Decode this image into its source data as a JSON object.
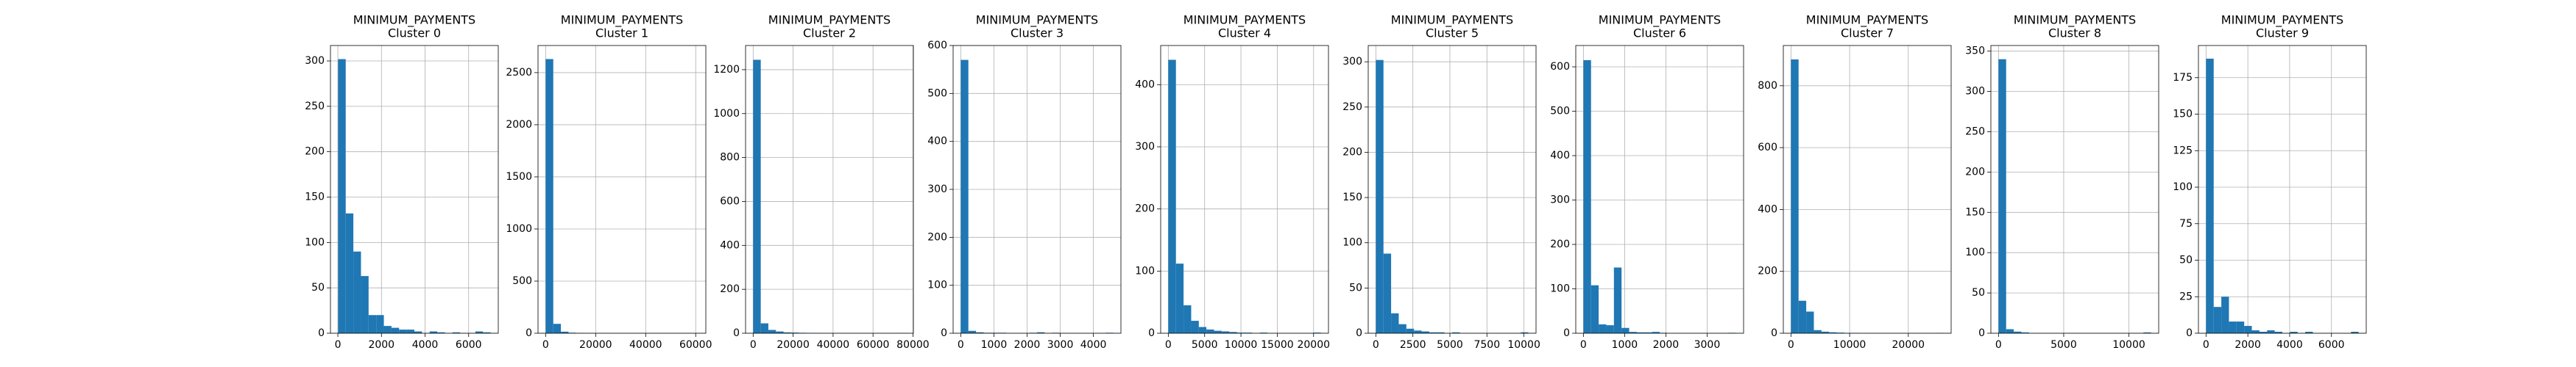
{
  "chart_data": [
    {
      "type": "histogram",
      "title": "MINIMUM_PAYMENTS",
      "subtitle": "Cluster 0",
      "color": "#1f77b4",
      "grid": true,
      "bins": [
        10,
        360,
        710,
        1060,
        1410,
        1760,
        2110,
        2460,
        2810,
        3160,
        3510,
        3860,
        4210,
        4560,
        4910,
        5260,
        5610,
        5960,
        6310,
        6660,
        7010
      ],
      "values": [
        302,
        132,
        90,
        63,
        20,
        20,
        8,
        6,
        4,
        4,
        2,
        0,
        2,
        1,
        0,
        1,
        0,
        0,
        2,
        1
      ],
      "xlim": [
        -340,
        7360
      ],
      "xticks": [
        0,
        2000,
        4000,
        6000
      ],
      "ylim": [
        0,
        317
      ],
      "yticks": [
        0,
        50,
        100,
        150,
        200,
        250,
        300
      ]
    },
    {
      "type": "histogram",
      "title": "MINIMUM_PAYMENTS",
      "subtitle": "Cluster 1",
      "color": "#1f77b4",
      "grid": true,
      "bins": [
        0,
        3050,
        6100,
        9150,
        12200,
        15250,
        18300,
        21350,
        24400,
        27450,
        30500,
        33550,
        36600,
        39650,
        42700,
        45750,
        48800,
        51850,
        54900,
        57950,
        61000
      ],
      "values": [
        2630,
        90,
        15,
        5,
        3,
        2,
        1,
        1,
        0,
        0,
        0,
        0,
        0,
        0,
        0,
        0,
        0,
        0,
        0,
        1
      ],
      "xlim": [
        -3050,
        64050
      ],
      "xticks": [
        0,
        20000,
        40000,
        60000
      ],
      "ylim": [
        0,
        2760
      ],
      "yticks": [
        0,
        500,
        1000,
        1500,
        2000,
        2500
      ]
    },
    {
      "type": "histogram",
      "title": "MINIMUM_PAYMENTS",
      "subtitle": "Cluster 2",
      "color": "#1f77b4",
      "grid": true,
      "bins": [
        0,
        3800,
        7600,
        11400,
        15200,
        19000,
        22800,
        26600,
        30400,
        34200,
        38000,
        41800,
        45600,
        49400,
        53200,
        57000,
        60800,
        64600,
        68400,
        72200,
        76000
      ],
      "values": [
        1245,
        45,
        15,
        8,
        4,
        3,
        2,
        1,
        1,
        0,
        0,
        0,
        0,
        0,
        0,
        0,
        0,
        0,
        0,
        1
      ],
      "xlim": [
        -3800,
        80200
      ],
      "xticks": [
        0,
        20000,
        40000,
        60000,
        80000
      ],
      "ylim": [
        0,
        1310
      ],
      "yticks": [
        0,
        200,
        400,
        600,
        800,
        1000,
        1200
      ]
    },
    {
      "type": "histogram",
      "title": "MINIMUM_PAYMENTS",
      "subtitle": "Cluster 3",
      "color": "#1f77b4",
      "grid": true,
      "bins": [
        0,
        230,
        460,
        690,
        920,
        1150,
        1380,
        1610,
        1840,
        2070,
        2300,
        2530,
        2760,
        2990,
        3220,
        3450,
        3680,
        3910,
        4140,
        4370,
        4600
      ],
      "values": [
        570,
        5,
        2,
        1,
        1,
        1,
        0,
        0,
        0,
        1,
        2,
        0,
        1,
        0,
        0,
        0,
        0,
        0,
        0,
        1
      ],
      "xlim": [
        -230,
        4830
      ],
      "xticks": [
        0,
        1000,
        2000,
        3000,
        4000
      ],
      "ylim": [
        0,
        600
      ],
      "yticks": [
        0,
        100,
        200,
        300,
        400,
        500,
        600
      ]
    },
    {
      "type": "histogram",
      "title": "MINIMUM_PAYMENTS",
      "subtitle": "Cluster 4",
      "color": "#1f77b4",
      "grid": true,
      "bins": [
        0,
        1050,
        2100,
        3150,
        4200,
        5250,
        6300,
        7350,
        8400,
        9450,
        10500,
        11550,
        12600,
        13650,
        14700,
        15750,
        16800,
        17850,
        18900,
        19950,
        21000
      ],
      "values": [
        440,
        112,
        45,
        20,
        10,
        6,
        4,
        3,
        2,
        1,
        1,
        0,
        1,
        0,
        0,
        0,
        0,
        0,
        0,
        1
      ],
      "xlim": [
        -1050,
        22050
      ],
      "xticks": [
        0,
        5000,
        10000,
        15000,
        20000
      ],
      "ylim": [
        0,
        463
      ],
      "yticks": [
        0,
        100,
        200,
        300,
        400
      ]
    },
    {
      "type": "histogram",
      "title": "MINIMUM_PAYMENTS",
      "subtitle": "Cluster 5",
      "color": "#1f77b4",
      "grid": true,
      "bins": [
        0,
        515,
        1030,
        1545,
        2060,
        2575,
        3090,
        3605,
        4120,
        4635,
        5150,
        5665,
        6180,
        6695,
        7210,
        7725,
        8240,
        8755,
        9270,
        9785,
        10300
      ],
      "values": [
        302,
        88,
        22,
        10,
        5,
        3,
        2,
        1,
        1,
        0,
        1,
        0,
        0,
        0,
        0,
        0,
        0,
        0,
        0,
        1
      ],
      "xlim": [
        -515,
        10815
      ],
      "xticks": [
        0,
        2500,
        5000,
        7500,
        10000
      ],
      "ylim": [
        0,
        318
      ],
      "yticks": [
        0,
        50,
        100,
        150,
        200,
        250,
        300
      ]
    },
    {
      "type": "histogram",
      "title": "MINIMUM_PAYMENTS",
      "subtitle": "Cluster 6",
      "color": "#1f77b4",
      "grid": true,
      "bins": [
        0,
        185,
        370,
        555,
        740,
        925,
        1110,
        1295,
        1480,
        1665,
        1850,
        2035,
        2220,
        2405,
        2590,
        2775,
        2960,
        3145,
        3330,
        3515,
        3700
      ],
      "values": [
        615,
        108,
        20,
        18,
        148,
        12,
        3,
        2,
        2,
        3,
        1,
        0,
        0,
        0,
        0,
        0,
        0,
        0,
        0,
        1
      ],
      "xlim": [
        -185,
        3885
      ],
      "xticks": [
        0,
        1000,
        2000,
        3000
      ],
      "ylim": [
        0,
        648
      ],
      "yticks": [
        0,
        100,
        200,
        300,
        400,
        500,
        600
      ]
    },
    {
      "type": "histogram",
      "title": "MINIMUM_PAYMENTS",
      "subtitle": "Cluster 7",
      "color": "#1f77b4",
      "grid": true,
      "bins": [
        0,
        1300,
        2600,
        3900,
        5200,
        6500,
        7800,
        9100,
        10400,
        11700,
        13000,
        14300,
        15600,
        16900,
        18200,
        19500,
        20800,
        22100,
        23400,
        24700,
        26000
      ],
      "values": [
        885,
        105,
        70,
        10,
        5,
        3,
        2,
        1,
        1,
        0,
        0,
        0,
        0,
        0,
        0,
        0,
        0,
        0,
        0,
        1
      ],
      "xlim": [
        -1300,
        27300
      ],
      "xticks": [
        0,
        10000,
        20000
      ],
      "ylim": [
        0,
        930
      ],
      "yticks": [
        0,
        200,
        400,
        600,
        800
      ]
    },
    {
      "type": "histogram",
      "title": "MINIMUM_PAYMENTS",
      "subtitle": "Cluster 8",
      "color": "#1f77b4",
      "grid": true,
      "bins": [
        0,
        585,
        1170,
        1755,
        2340,
        2925,
        3510,
        4095,
        4680,
        5265,
        5850,
        6435,
        7020,
        7605,
        8190,
        8775,
        9360,
        9945,
        10530,
        11115,
        11700
      ],
      "values": [
        340,
        5,
        2,
        1,
        0,
        0,
        0,
        0,
        0,
        0,
        0,
        0,
        0,
        0,
        0,
        0,
        0,
        0,
        0,
        1
      ],
      "xlim": [
        -585,
        12285
      ],
      "xticks": [
        0,
        5000,
        10000
      ],
      "ylim": [
        0,
        357
      ],
      "yticks": [
        0,
        50,
        100,
        150,
        200,
        250,
        300,
        350
      ]
    },
    {
      "type": "histogram",
      "title": "MINIMUM_PAYMENTS",
      "subtitle": "Cluster 9",
      "color": "#1f77b4",
      "grid": true,
      "bins": [
        0,
        365,
        730,
        1095,
        1460,
        1825,
        2190,
        2555,
        2920,
        3285,
        3650,
        4015,
        4380,
        4745,
        5110,
        5475,
        5840,
        6205,
        6570,
        6935,
        7300
      ],
      "values": [
        188,
        18,
        25,
        8,
        8,
        5,
        2,
        1,
        2,
        1,
        0,
        1,
        0,
        1,
        0,
        0,
        0,
        0,
        0,
        1
      ],
      "xlim": [
        -365,
        7665
      ],
      "xticks": [
        0,
        2000,
        4000,
        6000
      ],
      "ylim": [
        0,
        197
      ],
      "yticks": [
        0,
        25,
        50,
        75,
        100,
        125,
        150,
        175
      ]
    }
  ]
}
